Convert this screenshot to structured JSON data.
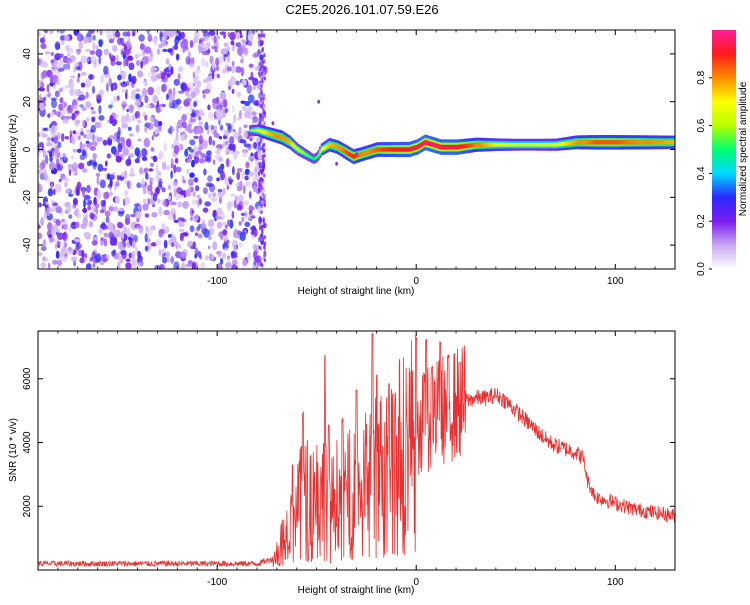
{
  "title": "C2E5.2026.101.07.59.E26",
  "chart_data": [
    {
      "type": "heatmap",
      "name": "spectrogram",
      "xlabel": "Height of straight line (km)",
      "ylabel": "Frequency (Hz)",
      "xlim": [
        -190,
        130
      ],
      "ylim": [
        -50,
        50
      ],
      "x_ticks": [
        -100,
        0,
        100
      ],
      "x_tick_labels": [
        "-100",
        "0",
        "100"
      ],
      "y_ticks": [
        -40,
        -20,
        0,
        20,
        40
      ],
      "y_tick_labels": [
        "-40",
        "-20",
        "0",
        "20",
        "40"
      ],
      "noise_region_x": [
        -190,
        -76
      ],
      "ridge": {
        "x": [
          -84,
          -80,
          -76,
          -72,
          -68,
          -64,
          -60,
          -56,
          -54,
          -52,
          -50,
          -48,
          -44,
          -40,
          -36,
          -32,
          -28,
          -24,
          -20,
          -16,
          -12,
          -8,
          -4,
          0,
          4,
          8,
          12,
          20,
          30,
          40,
          50,
          60,
          70,
          80,
          90,
          100,
          110,
          120,
          130
        ],
        "y": [
          8,
          8,
          7,
          6,
          5,
          3,
          0,
          -2,
          -3,
          -4,
          -3,
          0,
          2,
          1,
          -1,
          -3,
          -2,
          -1,
          0,
          0,
          0,
          0,
          0,
          1,
          3,
          2,
          1,
          1,
          2,
          2,
          2,
          2,
          2,
          3,
          3,
          3,
          3,
          3,
          3
        ],
        "amplitude": [
          0.3,
          0.5,
          0.65,
          0.75,
          0.8,
          0.7,
          0.5,
          0.35,
          0.3,
          0.25,
          0.3,
          0.55,
          0.7,
          0.75,
          0.85,
          0.9,
          0.8,
          0.8,
          0.85,
          0.88,
          0.9,
          0.92,
          0.93,
          0.95,
          0.97,
          0.97,
          0.95,
          0.95,
          0.8,
          0.6,
          0.5,
          0.5,
          0.55,
          0.75,
          0.85,
          0.85,
          0.8,
          0.75,
          0.7
        ]
      }
    },
    {
      "type": "line",
      "name": "snr",
      "xlabel": "Height of straight line (km)",
      "ylabel": "SNR (10 * v/v)",
      "xlim": [
        -190,
        130
      ],
      "ylim": [
        0,
        7500
      ],
      "x_ticks": [
        -100,
        0,
        100
      ],
      "x_tick_labels": [
        "-100",
        "0",
        "100"
      ],
      "y_ticks": [
        2000,
        4000,
        6000
      ],
      "y_tick_labels": [
        "2000",
        "4000",
        "6000"
      ],
      "color": "#e83030",
      "envelope": {
        "x": [
          -190,
          -80,
          -72,
          -68,
          -60,
          -55,
          -48,
          -45,
          -40,
          -35,
          -30,
          -25,
          -20,
          -15,
          -10,
          -5,
          0,
          5,
          10,
          15,
          20,
          25,
          30,
          35,
          40,
          45,
          50,
          55,
          60,
          65,
          70,
          75,
          80,
          84,
          86,
          90,
          100,
          110,
          120,
          130
        ],
        "y": [
          200,
          200,
          350,
          900,
          1900,
          2400,
          2600,
          1700,
          2400,
          2500,
          2600,
          2900,
          3200,
          3500,
          3800,
          4100,
          4500,
          4700,
          4900,
          5100,
          5200,
          5300,
          5400,
          5400,
          5500,
          5300,
          5000,
          4700,
          4400,
          4100,
          3900,
          3800,
          3700,
          3500,
          2800,
          2300,
          2100,
          1900,
          1800,
          1700
        ]
      },
      "spikes": [
        {
          "x": -62,
          "y": 3400
        },
        {
          "x": -58,
          "y": 3900
        },
        {
          "x": -57,
          "y": 5000
        },
        {
          "x": -46,
          "y": 6800
        },
        {
          "x": -44,
          "y": 4600
        },
        {
          "x": -37,
          "y": 4800
        },
        {
          "x": -30,
          "y": 5700
        },
        {
          "x": -22,
          "y": 7450
        },
        {
          "x": -20,
          "y": 6200
        },
        {
          "x": -12,
          "y": 5600
        },
        {
          "x": 0,
          "y": 7400
        },
        {
          "x": 5,
          "y": 7250
        },
        {
          "x": 8,
          "y": 6400
        },
        {
          "x": 12,
          "y": 7200
        },
        {
          "x": 16,
          "y": 6800
        }
      ]
    }
  ],
  "colorbar": {
    "label": "Normalized spectral amplitude",
    "ticks": [
      0.0,
      0.2,
      0.4,
      0.6,
      0.8
    ],
    "tick_labels": [
      "0.0",
      "0.2",
      "0.4",
      "0.6",
      "0.8"
    ],
    "range": [
      0,
      1
    ],
    "colors": [
      "#ffffff",
      "#c9a6f2",
      "#7a1cf0",
      "#2a2aff",
      "#00d8ff",
      "#00ff70",
      "#b6ff00",
      "#ffff00",
      "#ff8a00",
      "#ff1a1a",
      "#ff1f9c"
    ]
  }
}
